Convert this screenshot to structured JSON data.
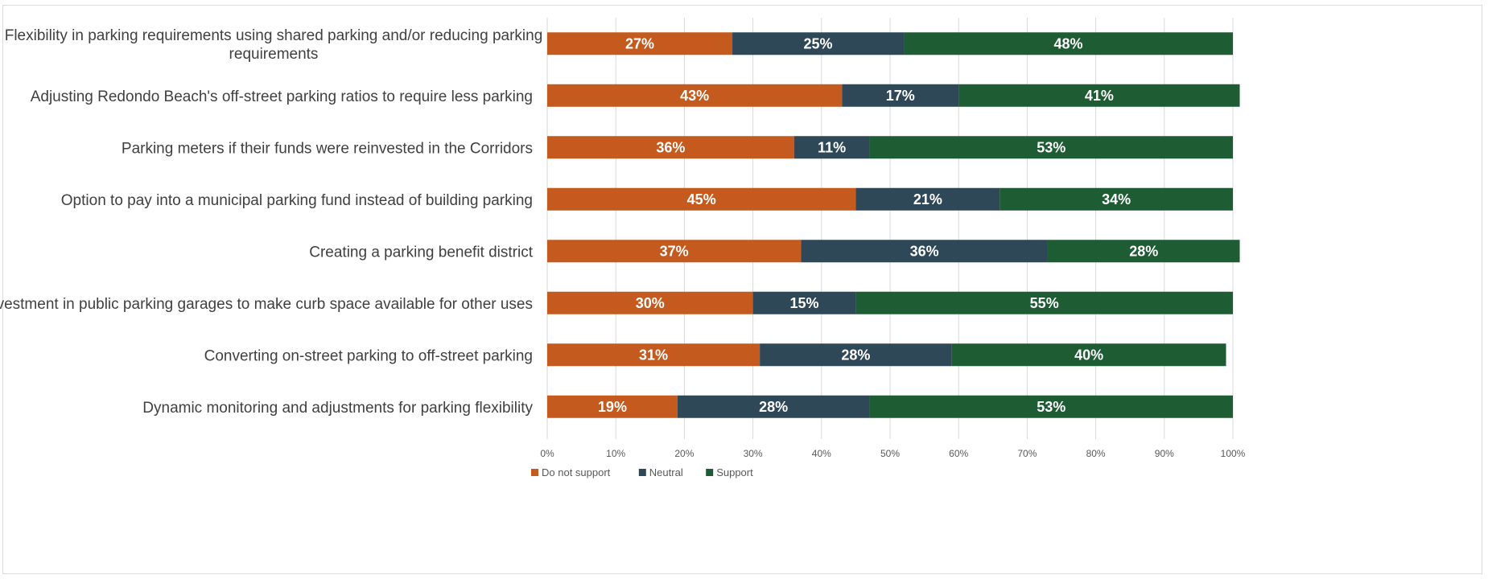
{
  "chart_data": {
    "type": "bar",
    "orientation": "horizontal-stacked-100",
    "title": "",
    "xlabel": "",
    "ylabel": "",
    "xlim": [
      0,
      100
    ],
    "xticks": [
      "0%",
      "10%",
      "20%",
      "30%",
      "40%",
      "50%",
      "60%",
      "70%",
      "80%",
      "90%",
      "100%"
    ],
    "grid": true,
    "legend_position": "bottom",
    "categories": [
      [
        "Flexibility in parking requirements using shared parking and/or reducing parking",
        "requirements"
      ],
      [
        "Adjusting Redondo Beach's off-street parking ratios to require less parking"
      ],
      [
        "Parking meters if their funds were reinvested in the Corridors"
      ],
      [
        "Option to pay into a municipal parking fund instead of building parking"
      ],
      [
        "Creating a parking benefit district"
      ],
      [
        "Investment in public parking garages to make curb space available for other uses"
      ],
      [
        "Converting on-street parking to off-street parking"
      ],
      [
        "Dynamic monitoring and adjustments for parking flexibility"
      ]
    ],
    "series": [
      {
        "name": "Do not support",
        "color": "#c55a1e",
        "values": [
          27,
          43,
          36,
          45,
          37,
          30,
          31,
          19
        ],
        "labels": [
          "27%",
          "43%",
          "36%",
          "45%",
          "37%",
          "30%",
          "31%",
          "19%"
        ]
      },
      {
        "name": "Neutral",
        "color": "#2f4858",
        "values": [
          25,
          17,
          11,
          21,
          36,
          15,
          28,
          28
        ],
        "labels": [
          "25%",
          "17%",
          "11%",
          "21%",
          "36%",
          "15%",
          "28%",
          "28%"
        ]
      },
      {
        "name": "Support",
        "color": "#1e5c34",
        "values": [
          48,
          41,
          53,
          34,
          28,
          55,
          40,
          53
        ],
        "labels": [
          "48%",
          "41%",
          "53%",
          "34%",
          "28%",
          "55%",
          "40%",
          "53%"
        ]
      }
    ]
  }
}
